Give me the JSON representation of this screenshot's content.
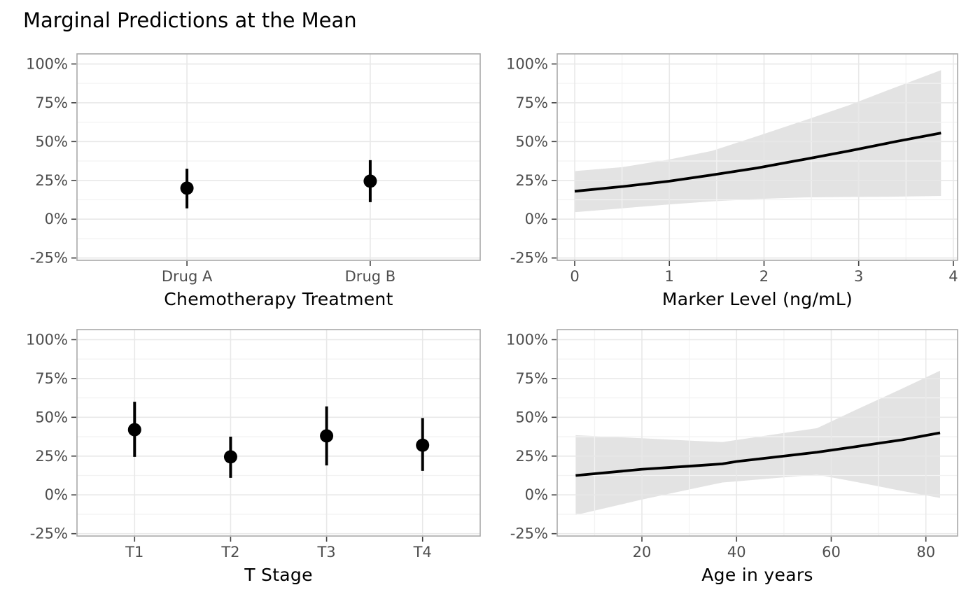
{
  "title": "Marginal Predictions at the Mean",
  "style": {
    "background": "#ffffff",
    "text_color": "#000000",
    "tick_label_color": "#4d4d4d",
    "axis_tick_color": "#404040",
    "panel_border_color": "#a9a9a9",
    "grid_major_color": "#e8e8e8",
    "grid_minor_color": "#f3f3f3",
    "ribbon_color": "#e3e3e3",
    "geom_color": "#000000"
  },
  "y_axis": {
    "domain": [
      -26.5,
      106.5
    ],
    "ticks": [
      100,
      75,
      50,
      25,
      0,
      -25
    ],
    "tick_labels": [
      "100%",
      "75%",
      "50%",
      "25%",
      "0%",
      "-25%"
    ],
    "minor": [
      87.5,
      62.5,
      37.5,
      12.5,
      -12.5
    ],
    "unit": "%"
  },
  "chart_data": [
    {
      "type": "scatter",
      "subtype": "pointrange",
      "title": "",
      "xlabel": "Chemotherapy Treatment",
      "ylabel": "",
      "categories": [
        "Drug A",
        "Drug B"
      ],
      "estimates": [
        20,
        24.5
      ],
      "ci_low": [
        7,
        11
      ],
      "ci_high": [
        32.5,
        38
      ],
      "ylim": [
        -25,
        100
      ],
      "grid": true,
      "legend": false
    },
    {
      "type": "line",
      "subtype": "line-with-ribbon",
      "title": "",
      "xlabel": "Marker Level (ng/mL)",
      "ylabel": "",
      "x": [
        0,
        0.5,
        1,
        1.45,
        1.93,
        2.42,
        2.9,
        3.39,
        3.87
      ],
      "y": [
        18,
        21,
        24.5,
        28.5,
        33,
        38.5,
        44,
        50,
        55.5
      ],
      "ci_low": [
        4.5,
        7,
        9.5,
        11.5,
        13,
        14,
        14.3,
        14.5,
        15
      ],
      "ci_high": [
        31,
        33.5,
        38.5,
        44,
        53.5,
        63.5,
        73.5,
        85,
        96
      ],
      "x_ticks": [
        0,
        1,
        2,
        3,
        4
      ],
      "x_minor": [
        0.5,
        1.5,
        2.5,
        3.5
      ],
      "xlim": [
        -0.185,
        4.045
      ],
      "ylim": [
        -25,
        100
      ],
      "grid": true,
      "legend": false
    },
    {
      "type": "scatter",
      "subtype": "pointrange",
      "title": "",
      "xlabel": "T Stage",
      "ylabel": "",
      "categories": [
        "T1",
        "T2",
        "T3",
        "T4"
      ],
      "estimates": [
        42,
        24.5,
        38,
        32
      ],
      "ci_low": [
        24.5,
        11,
        19,
        15.5
      ],
      "ci_high": [
        60,
        37.5,
        57,
        49.5
      ],
      "ylim": [
        -25,
        100
      ],
      "grid": true,
      "legend": false
    },
    {
      "type": "line",
      "subtype": "line-with-ribbon",
      "title": "",
      "xlabel": "Age in years",
      "ylabel": "",
      "x": [
        6,
        20,
        30,
        37,
        40,
        50,
        57,
        65,
        75,
        83
      ],
      "y": [
        12.5,
        16.5,
        18.5,
        20,
        21.5,
        25,
        27.5,
        31,
        35.5,
        40
      ],
      "ci_low": [
        -13,
        -3,
        3.5,
        8,
        8.7,
        11.3,
        13,
        8.5,
        2.5,
        -2
      ],
      "ci_high": [
        38.5,
        36.5,
        35,
        34,
        35.4,
        39.9,
        43,
        54.5,
        68.5,
        80
      ],
      "x_ticks": [
        20,
        40,
        60,
        80
      ],
      "x_minor": [
        10,
        30,
        50,
        70
      ],
      "xlim": [
        2.1,
        86.7
      ],
      "ylim": [
        -25,
        100
      ],
      "grid": true,
      "legend": false
    }
  ]
}
